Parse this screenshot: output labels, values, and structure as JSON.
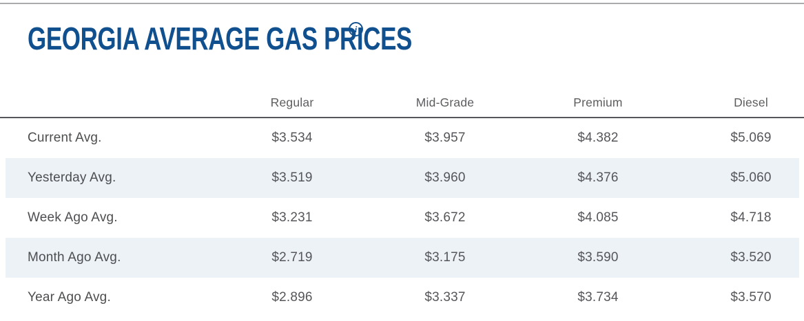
{
  "colors": {
    "accent_blue": "#11508f",
    "stripe_row_bg": "#edf2f7",
    "header_border": "#55565a",
    "top_border": "#a9aaab",
    "header_text": "#5c5d5f",
    "body_text": "#4d4e50"
  },
  "header": {
    "title": "GEORGIA AVERAGE GAS PRICES",
    "info_icon_glyph": "i"
  },
  "table": {
    "columns": [
      "Regular",
      "Mid-Grade",
      "Premium",
      "Diesel"
    ],
    "rows": [
      {
        "label": "Current Avg.",
        "values": [
          "$3.534",
          "$3.957",
          "$4.382",
          "$5.069"
        ]
      },
      {
        "label": "Yesterday Avg.",
        "values": [
          "$3.519",
          "$3.960",
          "$4.376",
          "$5.060"
        ]
      },
      {
        "label": "Week Ago Avg.",
        "values": [
          "$3.231",
          "$3.672",
          "$4.085",
          "$4.718"
        ]
      },
      {
        "label": "Month Ago Avg.",
        "values": [
          "$2.719",
          "$3.175",
          "$3.590",
          "$3.520"
        ]
      },
      {
        "label": "Year Ago Avg.",
        "values": [
          "$2.896",
          "$3.337",
          "$3.734",
          "$3.570"
        ]
      }
    ]
  }
}
